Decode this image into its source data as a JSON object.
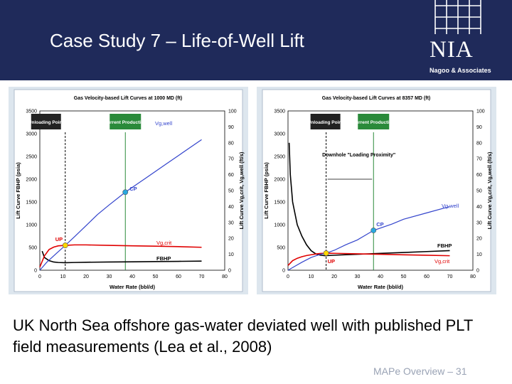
{
  "slide": {
    "title": "Case Study 7 – Life-of-Well Lift",
    "logo": {
      "mark": "NIA",
      "subtitle": "Nagoo & Associates"
    },
    "caption": "UK North Sea offshore gas-water deviated well with published PLT field measurements (Lea et al., 2008)",
    "footer": "MAPe Overview – 31"
  },
  "colors": {
    "header": "#1f2a5a",
    "panel": "#dde6ee",
    "fbhp": "#000000",
    "vgcrit": "#e00000",
    "vgwell": "#3344cc",
    "points": "#ffd700",
    "cp": "#29a8e0"
  },
  "chart_data": [
    {
      "type": "line",
      "title": "Gas Velocity-based Lift Curves at 1000 MD (ft)",
      "xlabel": "Water Rate (bbl/d)",
      "ylabel": "Lift Curve FBHP (psia)",
      "y2label": "Lift Curve Vg,crit, Vg,well (ft/s)",
      "xlim": [
        0,
        80
      ],
      "ylim": [
        0,
        3500
      ],
      "y2lim": [
        0,
        100
      ],
      "xticks": [
        "0",
        "10",
        "20",
        "30",
        "40",
        "50",
        "60",
        "70",
        "80"
      ],
      "yticks": [
        "0",
        "500",
        "1000",
        "1500",
        "2000",
        "2500",
        "3000",
        "3500"
      ],
      "y2ticks": [
        "0",
        "10",
        "20",
        "30",
        "40",
        "50",
        "60",
        "70",
        "80",
        "90",
        "100"
      ],
      "labels": {
        "unloading": "Unloading Point",
        "current": "Current Production",
        "vgwell": "Vg,well",
        "vgcrit": "Vg,crit",
        "fbhp": "FBHP",
        "cp": "CP",
        "up": "UP"
      },
      "unloading_x": 11,
      "current_x": 37,
      "series": [
        {
          "name": "FBHP",
          "axis": "left",
          "x": [
            1,
            2,
            4,
            6,
            8,
            11,
            15,
            20,
            30,
            40,
            50,
            60,
            70
          ],
          "y": [
            420,
            280,
            210,
            180,
            170,
            165,
            170,
            175,
            180,
            185,
            190,
            195,
            200
          ]
        },
        {
          "name": "Vg,crit",
          "axis": "right",
          "x": [
            0,
            2,
            4,
            6,
            8,
            11,
            15,
            20,
            30,
            40,
            50,
            60,
            70
          ],
          "y": [
            2,
            9,
            13,
            14.5,
            15.3,
            15.6,
            15.9,
            15.9,
            15.6,
            15.3,
            15.1,
            14.8,
            14.4
          ]
        },
        {
          "name": "Vg,well",
          "axis": "right",
          "x": [
            0,
            3,
            6,
            11,
            15,
            20,
            25,
            30,
            37,
            45,
            50,
            55,
            60,
            65,
            70
          ],
          "y": [
            0,
            5,
            9,
            15.6,
            21,
            28,
            35,
            41,
            49,
            57,
            62,
            67,
            72,
            77,
            82
          ]
        }
      ],
      "points": [
        {
          "label": "UP",
          "x": 11,
          "y2": 15.6
        },
        {
          "label": "CP",
          "x": 37,
          "y2": 49
        }
      ]
    },
    {
      "type": "line",
      "title": "Gas Velocity-based Lift Curves at 8357 MD (ft)",
      "xlabel": "Water Rate (bbl/d)",
      "ylabel": "Lift Curve FBHP (psia)",
      "y2label": "Lift Curve Vg,crit, Vg,well (ft/s)",
      "xlim": [
        0,
        80
      ],
      "ylim": [
        0,
        3500
      ],
      "y2lim": [
        0,
        100
      ],
      "xticks": [
        "0",
        "10",
        "20",
        "30",
        "40",
        "50",
        "60",
        "70",
        "80"
      ],
      "yticks": [
        "0",
        "500",
        "1000",
        "1500",
        "2000",
        "2500",
        "3000",
        "3500"
      ],
      "y2ticks": [
        "0",
        "10",
        "20",
        "30",
        "40",
        "50",
        "60",
        "70",
        "80",
        "90",
        "100"
      ],
      "labels": {
        "unloading": "Unloading Point",
        "current": "Current Production",
        "downhole": "Downhole \"Loading Proximity\"",
        "vgwell": "Vg,well",
        "vgcrit": "Vg,crit",
        "fbhp": "FBHP",
        "cp": "CP",
        "up": "UP"
      },
      "unloading_x": 16.5,
      "current_x": 37,
      "series": [
        {
          "name": "FBHP",
          "axis": "left",
          "x": [
            0.5,
            1,
            2,
            4,
            6,
            8,
            10,
            12,
            14,
            16,
            20,
            30,
            40,
            50,
            60,
            70
          ],
          "y": [
            2800,
            2100,
            1500,
            1000,
            750,
            560,
            430,
            360,
            330,
            320,
            330,
            350,
            370,
            390,
            410,
            430
          ]
        },
        {
          "name": "Vg,crit",
          "axis": "right",
          "x": [
            0,
            2,
            4,
            6,
            8,
            10,
            12,
            14,
            16.5,
            20,
            30,
            40,
            50,
            60,
            70
          ],
          "y": [
            3,
            6,
            7.5,
            8.5,
            9.2,
            9.7,
            10.2,
            10.5,
            10.7,
            10.6,
            10.3,
            10,
            9.7,
            9.4,
            9.1
          ]
        },
        {
          "name": "Vg,well",
          "axis": "right",
          "x": [
            0,
            3,
            6,
            10,
            14,
            16.5,
            20,
            25,
            30,
            37,
            45,
            50,
            60,
            70
          ],
          "y": [
            0,
            2.5,
            5,
            8,
            10,
            10.7,
            12.5,
            16,
            19,
            25,
            29,
            32,
            36,
            40
          ]
        }
      ],
      "points": [
        {
          "label": "UP",
          "x": 16.5,
          "y2": 10.7
        },
        {
          "label": "CP",
          "x": 37,
          "y2": 25
        }
      ]
    }
  ]
}
